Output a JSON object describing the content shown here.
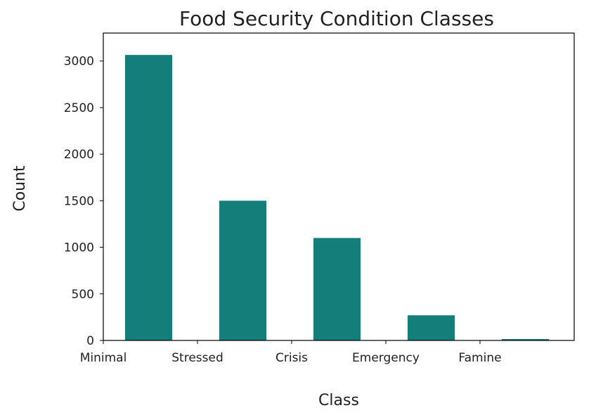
{
  "chart_data": {
    "type": "bar",
    "title": "Food Security Condition Classes",
    "xlabel": "Class",
    "ylabel": "Count",
    "categories": [
      "Minimal",
      "Stressed",
      "Crisis",
      "Emergency",
      "Famine"
    ],
    "values": [
      3065,
      1500,
      1100,
      270,
      15
    ],
    "ylim": [
      0,
      3300
    ],
    "yticks": [
      0,
      500,
      1000,
      1500,
      2000,
      2500,
      3000
    ],
    "bar_color": "#137e7a",
    "grid": false,
    "legend": "none"
  }
}
